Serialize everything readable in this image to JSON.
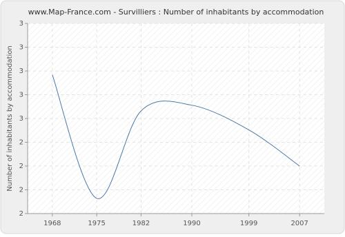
{
  "chart_data": {
    "type": "line",
    "title": "www.Map-France.com - Survilliers : Number of inhabitants by accommodation",
    "y_label": "Number of inhabitants by accommodation",
    "x": [
      1968,
      1975,
      1982,
      1990,
      1999,
      2007
    ],
    "series": [
      {
        "name": "Number of inhabitants by accommodation",
        "color": "#4a78a8",
        "values": [
          2.73,
          2.08,
          2.54,
          2.57,
          2.44,
          2.25
        ]
      }
    ],
    "xlim": [
      1964.1,
      2010.9
    ],
    "xticks": [
      1968,
      1975,
      1982,
      1990,
      1999,
      2007
    ],
    "ylim": [
      2,
      3
    ],
    "yticks": [
      {
        "value": 2,
        "label": "2"
      },
      {
        "value": 2.125,
        "label": "2"
      },
      {
        "value": 2.25,
        "label": "2"
      },
      {
        "value": 2.375,
        "label": "2"
      },
      {
        "value": 2.5,
        "label": "3"
      },
      {
        "value": 2.625,
        "label": "3"
      },
      {
        "value": 2.75,
        "label": "3"
      },
      {
        "value": 2.875,
        "label": "3"
      },
      {
        "value": 3,
        "label": "3"
      }
    ],
    "grid": true
  }
}
